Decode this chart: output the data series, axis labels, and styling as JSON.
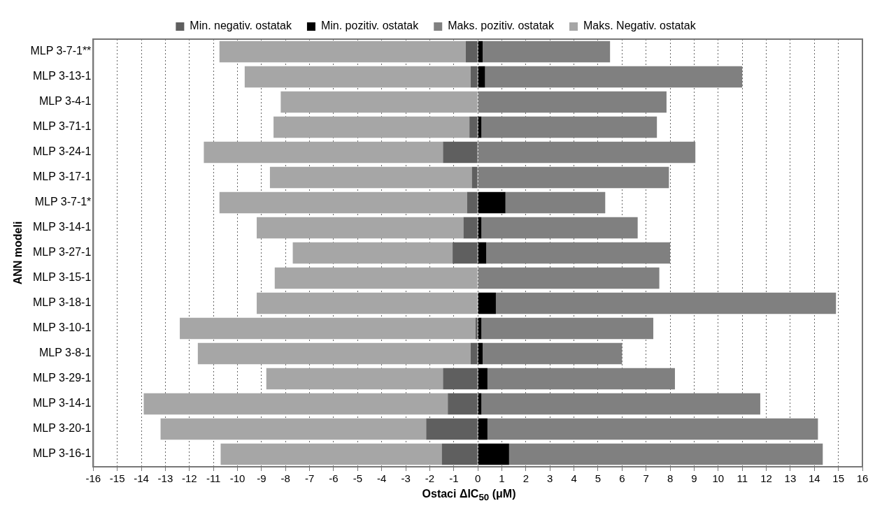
{
  "chart_data": {
    "type": "bar",
    "orientation": "horizontal",
    "stacked": true,
    "xlabel": "Ostaci ΔIC$_{50}$ (μM)",
    "ylabel": "ANN modeli",
    "categories": [
      "MLP 3-7-1**",
      "MLP 3-13-1",
      "MLP 3-4-1",
      "MLP 3-71-1",
      "MLP 3-24-1",
      "MLP 3-17-1",
      "MLP 3-7-1*",
      "MLP 3-14-1",
      "MLP 3-27-1",
      "MLP 3-15-1",
      "MLP 3-18-1",
      "MLP 3-10-1",
      "MLP 3-8-1",
      "MLP 3-29-1",
      "MLP 3-14-1",
      "MLP 3-20-1",
      "MLP 3-16-1"
    ],
    "series": [
      {
        "name": "Min. negativ. ostatak",
        "color": "#5f5f5f",
        "values": [
          -0.5,
          -0.3,
          0,
          -0.35,
          -1.45,
          -0.25,
          -0.45,
          -0.6,
          -1.05,
          0,
          0,
          -0.1,
          -0.3,
          -1.45,
          -1.25,
          -2.15,
          -1.5
        ]
      },
      {
        "name": "Min. pozitiv. ostatak",
        "color": "#000000",
        "values": [
          0.2,
          0.3,
          0,
          0.15,
          0,
          0,
          1.15,
          0.15,
          0.35,
          0,
          0.75,
          0.15,
          0.2,
          0.4,
          0.15,
          0.4,
          1.3
        ]
      },
      {
        "name": "Maks. pozitiv. ostatak",
        "color": "#808080",
        "values": [
          5.3,
          10.7,
          7.85,
          7.3,
          9.05,
          7.95,
          4.15,
          6.5,
          7.65,
          7.55,
          14.15,
          7.15,
          5.8,
          7.8,
          11.6,
          13.75,
          13.05
        ]
      },
      {
        "name": "Maks. Negativ. ostatak",
        "color": "#a6a6a6",
        "values": [
          -10.25,
          -9.4,
          -8.2,
          -8.15,
          -9.95,
          -8.4,
          -10.3,
          -8.6,
          -6.65,
          -8.45,
          -9.2,
          -12.3,
          -11.35,
          -7.35,
          -12.65,
          -11.05,
          -9.2
        ]
      }
    ],
    "xlim": [
      -16,
      16
    ],
    "xticks": [
      -16,
      -15,
      -14,
      -13,
      -12,
      -11,
      -10,
      -9,
      -8,
      -7,
      -6,
      -5,
      -4,
      -3,
      -2,
      -1,
      0,
      1,
      2,
      3,
      4,
      5,
      6,
      7,
      8,
      9,
      10,
      11,
      12,
      13,
      14,
      15,
      16
    ],
    "grid": "x",
    "legend": "top"
  }
}
